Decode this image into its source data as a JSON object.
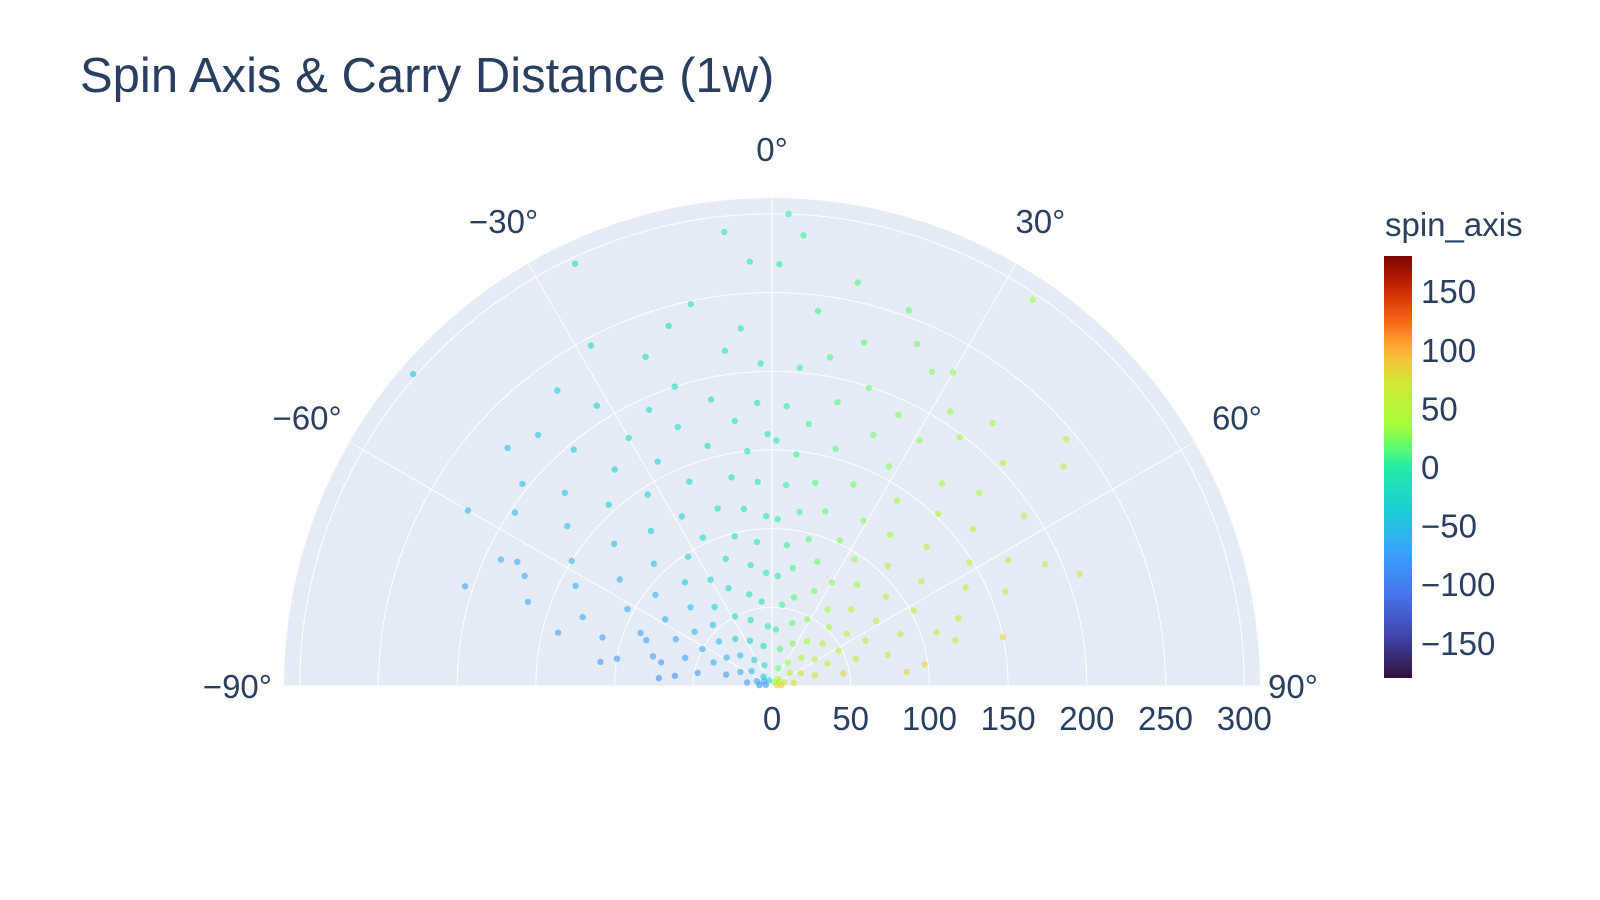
{
  "chart_data": {
    "type": "scatter",
    "subtype": "polar-scatter",
    "title": "Spin Axis & Carry Distance (1w)",
    "theta_unit": "degrees",
    "theta_range": [
      -90,
      90
    ],
    "theta_direction": "clockwise",
    "theta_zero": "top",
    "theta_ticks": [
      0,
      30,
      60,
      90,
      -60,
      -30,
      -90
    ],
    "theta_tick_labels": [
      "0°",
      "30°",
      "60°",
      "90°",
      "−60°",
      "−30°",
      "−90°"
    ],
    "r_range": [
      0,
      310
    ],
    "r_ticks": [
      0,
      50,
      100,
      150,
      200,
      250,
      300
    ],
    "r_tick_labels": [
      "0",
      "50",
      "100",
      "150",
      "200",
      "250",
      "300"
    ],
    "colorscale": "Turbo",
    "color_variable": "spin_axis",
    "colorbar": {
      "title": "spin_axis",
      "range": [
        -180,
        180
      ],
      "ticks": [
        150,
        100,
        50,
        0,
        -50,
        -100,
        -150
      ],
      "tick_labels": [
        "150",
        "100",
        "50",
        "0",
        "−50",
        "−100",
        "−150"
      ]
    },
    "marker_opacity": 0.6,
    "grid": true,
    "point_count_estimate": 1400,
    "points": [
      [
        2,
        300
      ],
      [
        -25,
        296
      ],
      [
        -6,
        290
      ],
      [
        4,
        287
      ],
      [
        -3,
        270
      ],
      [
        1,
        268
      ],
      [
        -49,
        302
      ],
      [
        34,
        296
      ],
      [
        12,
        262
      ],
      [
        20,
        254
      ],
      [
        -12,
        248
      ],
      [
        -28,
        245
      ],
      [
        7,
        240
      ],
      [
        -16,
        238
      ],
      [
        23,
        236
      ],
      [
        -36,
        232
      ],
      [
        30,
        230
      ],
      [
        -5,
        228
      ],
      [
        15,
        226
      ],
      [
        -21,
        224
      ],
      [
        27,
        224
      ],
      [
        -43,
        218
      ],
      [
        40,
        218
      ],
      [
        -8,
        215
      ],
      [
        10,
        212
      ],
      [
        -32,
        210
      ],
      [
        33,
        208
      ],
      [
        -51,
        204
      ],
      [
        46,
        204
      ],
      [
        -60,
        223
      ],
      [
        53,
        232
      ],
      [
        -2,
        205
      ],
      [
        5,
        203
      ],
      [
        -18,
        200
      ],
      [
        18,
        199
      ],
      [
        -40,
        196
      ],
      [
        37,
        198
      ],
      [
        -56,
        197
      ],
      [
        -65,
        190
      ],
      [
        56,
        193
      ],
      [
        -24,
        192
      ],
      [
        25,
        190
      ],
      [
        -12,
        186
      ],
      [
        13,
        185
      ],
      [
        -30,
        182
      ],
      [
        31,
        182
      ],
      [
        -47,
        180
      ],
      [
        47,
        180
      ],
      [
        -3,
        180
      ],
      [
        3,
        178
      ],
      [
        -66,
        172
      ],
      [
        62,
        170
      ],
      [
        -71,
        164
      ],
      [
        68,
        160
      ],
      [
        -20,
        175
      ],
      [
        22,
        172
      ],
      [
        -36,
        170
      ],
      [
        40,
        168
      ],
      [
        -8,
        170
      ],
      [
        8,
        168
      ],
      [
        -52,
        165
      ],
      [
        52,
        162
      ],
      [
        -27,
        160
      ],
      [
        28,
        158
      ],
      [
        -15,
        158
      ],
      [
        15,
        156
      ],
      [
        -42,
        155
      ],
      [
        44,
        152
      ],
      [
        -58,
        150
      ],
      [
        58,
        148
      ],
      [
        -1,
        160
      ],
      [
        1,
        156
      ],
      [
        -6,
        150
      ],
      [
        6,
        148
      ],
      [
        -33,
        145
      ],
      [
        34,
        142
      ],
      [
        -63,
        140
      ],
      [
        63,
        138
      ],
      [
        -22,
        140
      ],
      [
        22,
        138
      ],
      [
        -48,
        135
      ],
      [
        48,
        132
      ],
      [
        -11,
        135
      ],
      [
        12,
        132
      ],
      [
        -70,
        128
      ],
      [
        70,
        126
      ],
      [
        -4,
        130
      ],
      [
        4,
        128
      ],
      [
        -38,
        125
      ],
      [
        38,
        122
      ],
      [
        -28,
        122
      ],
      [
        29,
        120
      ],
      [
        -55,
        118
      ],
      [
        55,
        116
      ],
      [
        -17,
        118
      ],
      [
        17,
        116
      ],
      [
        -74,
        112
      ],
      [
        72,
        110
      ],
      [
        -9,
        114
      ],
      [
        9,
        112
      ],
      [
        -44,
        108
      ],
      [
        44,
        106
      ],
      [
        -62,
        104
      ],
      [
        62,
        102
      ],
      [
        -25,
        104
      ],
      [
        25,
        102
      ],
      [
        -2,
        108
      ],
      [
        2,
        106
      ],
      [
        -33,
        98
      ],
      [
        33,
        96
      ],
      [
        -14,
        98
      ],
      [
        14,
        96
      ],
      [
        -52,
        94
      ],
      [
        52,
        92
      ],
      [
        -68,
        90
      ],
      [
        68,
        88
      ],
      [
        -6,
        92
      ],
      [
        6,
        90
      ],
      [
        -40,
        86
      ],
      [
        40,
        84
      ],
      [
        -20,
        86
      ],
      [
        20,
        84
      ],
      [
        -58,
        80
      ],
      [
        58,
        78
      ],
      [
        -76,
        78
      ],
      [
        75,
        76
      ],
      [
        -30,
        78
      ],
      [
        30,
        76
      ],
      [
        -10,
        78
      ],
      [
        10,
        76
      ],
      [
        -46,
        72
      ],
      [
        46,
        70
      ],
      [
        -64,
        68
      ],
      [
        64,
        66
      ],
      [
        -3,
        72
      ],
      [
        3,
        70
      ],
      [
        -24,
        68
      ],
      [
        24,
        66
      ],
      [
        -36,
        62
      ],
      [
        36,
        60
      ],
      [
        -55,
        60
      ],
      [
        55,
        58
      ],
      [
        -72,
        58
      ],
      [
        72,
        56
      ],
      [
        -14,
        60
      ],
      [
        14,
        58
      ],
      [
        -44,
        54
      ],
      [
        44,
        52
      ],
      [
        -7,
        54
      ],
      [
        7,
        52
      ],
      [
        -62,
        50
      ],
      [
        62,
        48
      ],
      [
        -28,
        50
      ],
      [
        28,
        48
      ],
      [
        -80,
        48
      ],
      [
        80,
        46
      ],
      [
        -50,
        44
      ],
      [
        50,
        42
      ],
      [
        -18,
        44
      ],
      [
        18,
        42
      ],
      [
        -68,
        40
      ],
      [
        68,
        38
      ],
      [
        -38,
        38
      ],
      [
        38,
        36
      ],
      [
        -4,
        38
      ],
      [
        4,
        36
      ],
      [
        -58,
        34
      ],
      [
        58,
        32
      ],
      [
        -26,
        32
      ],
      [
        26,
        30
      ],
      [
        -76,
        30
      ],
      [
        76,
        28
      ],
      [
        -46,
        28
      ],
      [
        46,
        26
      ],
      [
        -12,
        26
      ],
      [
        12,
        24
      ],
      [
        -66,
        22
      ],
      [
        66,
        20
      ],
      [
        -34,
        20
      ],
      [
        34,
        18
      ],
      [
        -54,
        16
      ],
      [
        54,
        14
      ],
      [
        -82,
        16
      ],
      [
        82,
        14
      ],
      [
        -20,
        14
      ],
      [
        20,
        12
      ],
      [
        -72,
        10
      ],
      [
        72,
        8
      ],
      [
        -42,
        8
      ],
      [
        42,
        6
      ],
      [
        -86,
        8
      ],
      [
        86,
        6
      ],
      [
        -60,
        6
      ],
      [
        60,
        5
      ],
      [
        -30,
        4
      ],
      [
        30,
        3
      ],
      [
        -80,
        4
      ],
      [
        80,
        3
      ],
      [
        -70,
        85
      ],
      [
        -78,
        72
      ],
      [
        -84,
        62
      ],
      [
        -86,
        72
      ],
      [
        84,
        86
      ],
      [
        82,
        98
      ],
      [
        76,
        120
      ],
      [
        -80,
        100
      ],
      [
        -82,
        110
      ],
      [
        -76,
        140
      ],
      [
        78,
        150
      ],
      [
        -64,
        180
      ],
      [
        66,
        190
      ],
      [
        -72,
        205
      ],
      [
        70,
        208
      ],
      [
        -48,
        226
      ],
      [
        50,
        244
      ]
    ]
  }
}
